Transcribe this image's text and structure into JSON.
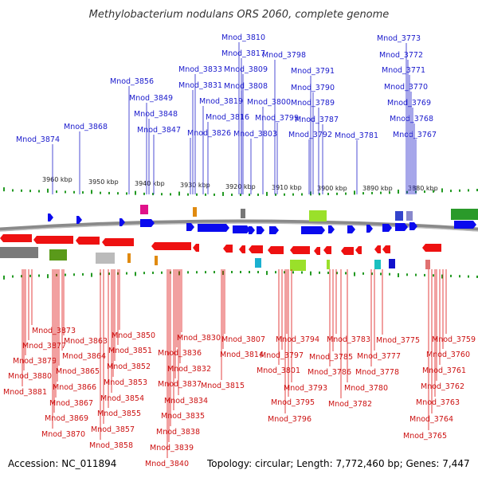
{
  "title": "Methylobacterium nodulans ORS 2060, complete genome",
  "footer": {
    "accession": "Accession: NC_011894",
    "info": "Topology: circular; Length: 7,772,460 bp; Genes: 7,447"
  },
  "scale_ticks": [
    "3960 kbp",
    "3950 kbp",
    "3940 kbp",
    "3930 kbp",
    "3920 kbp",
    "3910 kbp",
    "3900 kbp",
    "3890 kbp",
    "3880 kbp"
  ],
  "top_labels": [
    "Mnod_3810",
    "Mnod_3817",
    "Mnod_3798",
    "Mnod_3833",
    "Mnod_3809",
    "Mnod_3791",
    "Mnod_3831",
    "Mnod_3808",
    "Mnod_3790",
    "Mnod_3819",
    "Mnod_3800",
    "Mnod_3789",
    "Mnod_3816",
    "Mnod_3799",
    "Mnod_3787",
    "Mnod_3826",
    "Mnod_3803",
    "Mnod_3792",
    "Mnod_3781",
    "Mnod_3856",
    "Mnod_3849",
    "Mnod_3848",
    "Mnod_3847",
    "Mnod_3868",
    "Mnod_3874",
    "Mnod_3773",
    "Mnod_3772",
    "Mnod_3771",
    "Mnod_3770",
    "Mnod_3769",
    "Mnod_3768",
    "Mnod_3767"
  ],
  "bottom_labels": [
    "Mnod_3873",
    "Mnod_3877",
    "Mnod_3879",
    "Mnod_3880",
    "Mnod_3881",
    "Mnod_3863",
    "Mnod_3864",
    "Mnod_3865",
    "Mnod_3866",
    "Mnod_3867",
    "Mnod_3869",
    "Mnod_3870",
    "Mnod_3850",
    "Mnod_3851",
    "Mnod_3852",
    "Mnod_3853",
    "Mnod_3854",
    "Mnod_3855",
    "Mnod_3857",
    "Mnod_3858",
    "Mnod_3830",
    "Mnod_3836",
    "Mnod_3832",
    "Mnod_3837",
    "Mnod_3834",
    "Mnod_3835",
    "Mnod_3838",
    "Mnod_3839",
    "Mnod_3840",
    "Mnod_3807",
    "Mnod_3814",
    "Mnod_3815",
    "Mnod_3794",
    "Mnod_3797",
    "Mnod_3801",
    "Mnod_3793",
    "Mnod_3795",
    "Mnod_3796",
    "Mnod_3783",
    "Mnod_3785",
    "Mnod_3786",
    "Mnod_3780",
    "Mnod_3782",
    "Mnod_3775",
    "Mnod_3777",
    "Mnod_3778",
    "Mnod_3759",
    "Mnod_3760",
    "Mnod_3761",
    "Mnod_3762",
    "Mnod_3763",
    "Mnod_3764",
    "Mnod_3765"
  ],
  "colors": {
    "forward_gene": "#0a0aee",
    "reverse_gene": "#ee1111",
    "top_leader": "#2222cc",
    "bottom_leader": "#dd1111",
    "tick": "#229922",
    "backbone": "#7a7a7a"
  }
}
